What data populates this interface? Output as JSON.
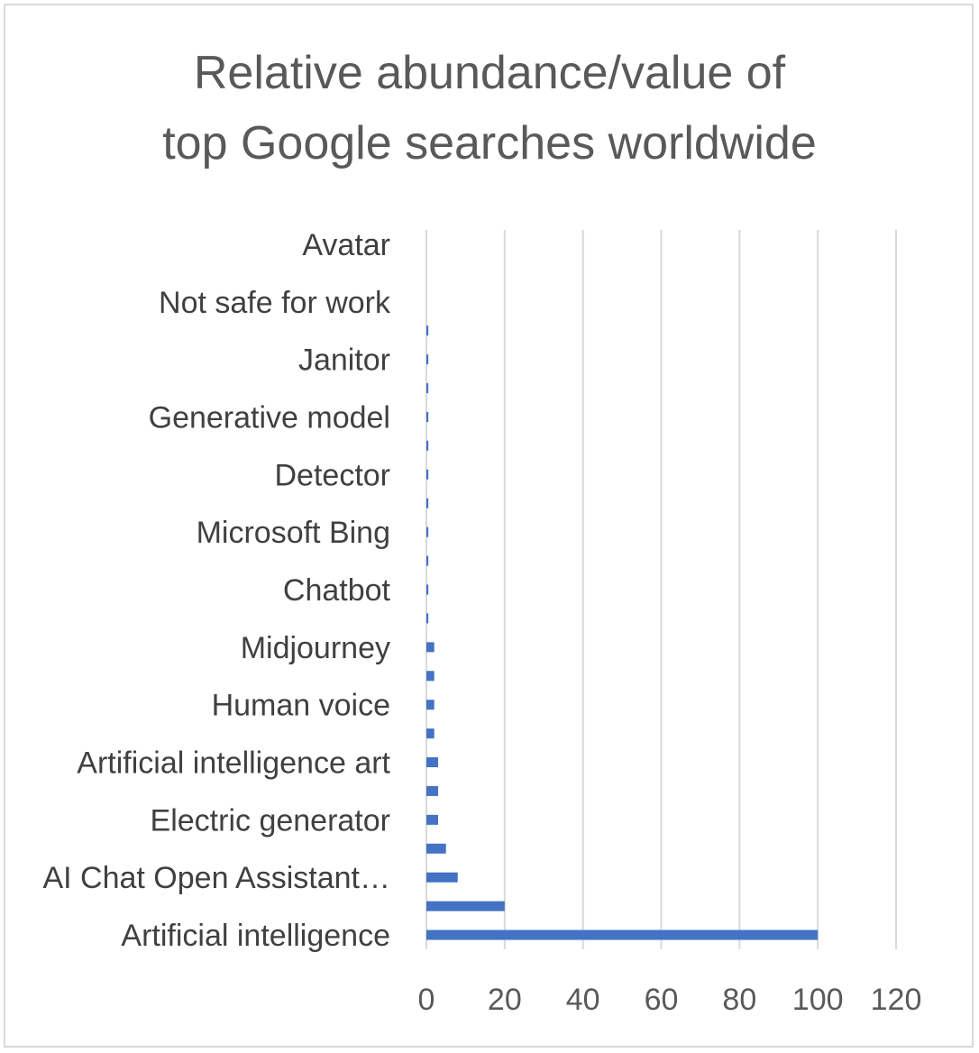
{
  "chart_data": {
    "type": "bar",
    "orientation": "horizontal",
    "title": "Relative abundance/value of top Google searches worldwide",
    "title_lines": [
      "Relative abundance/value of",
      "top Google searches worldwide"
    ],
    "categories": [
      "Artificial intelligence",
      "",
      "AI Chat Open Assistant…",
      "",
      "Electric generator",
      "",
      "Artificial intelligence art",
      "",
      "Human voice",
      "",
      "Midjourney",
      "",
      "Chatbot",
      "",
      "Microsoft Bing",
      "",
      "Detector",
      "",
      "Generative model",
      "",
      "Janitor",
      "",
      "Not safe for work",
      "",
      "Avatar"
    ],
    "values": [
      100,
      20,
      8,
      5,
      3,
      3,
      3,
      2,
      2,
      2,
      2,
      0.5,
      0.5,
      0.5,
      0.5,
      0.5,
      0.5,
      0.5,
      0.5,
      0.5,
      0.5,
      0.5,
      0,
      0,
      0
    ],
    "xlim": [
      0,
      120
    ],
    "xticks": [
      "0",
      "20",
      "40",
      "60",
      "80",
      "100",
      "120"
    ],
    "grid": true,
    "legend": "none",
    "bar_color": "#4472c4",
    "grid_color": "#d9d9d9"
  }
}
